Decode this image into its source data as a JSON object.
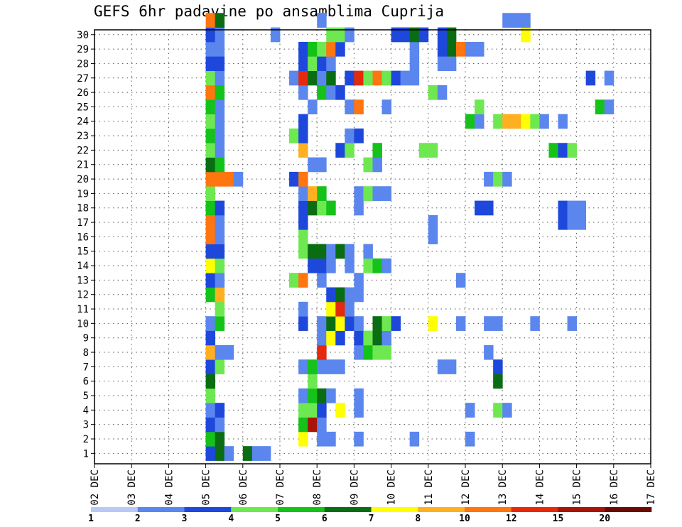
{
  "chart_data": {
    "type": "heatmap",
    "title": "GEFS 6hr padavine po ansamblima Cuprija",
    "xlabel": "",
    "ylabel": "",
    "x_ticks": [
      "02 DEC",
      "03 DEC",
      "04 DEC",
      "05 DEC",
      "06 DEC",
      "07 DEC",
      "08 DEC",
      "09 DEC",
      "10 DEC",
      "11 DEC",
      "12 DEC",
      "13 DEC",
      "14 DEC",
      "15 DEC",
      "16 DEC",
      "17 DEC"
    ],
    "y_ticks": [
      "1",
      "2",
      "3",
      "4",
      "5",
      "6",
      "7",
      "8",
      "9",
      "10",
      "11",
      "12",
      "13",
      "14",
      "15",
      "16",
      "17",
      "18",
      "19",
      "20",
      "21",
      "22",
      "23",
      "24",
      "25",
      "26",
      "27",
      "28",
      "29",
      "30"
    ],
    "x_unit": "6-hour step (index 0 = 02 DEC 00Z)",
    "grid": true,
    "legend_placement": "bottom",
    "legend": {
      "levels": [
        "1",
        "2",
        "3",
        "4",
        "5",
        "6",
        "7",
        "8",
        "10",
        "12",
        "15",
        "20"
      ],
      "colors": [
        "#b9c8f6",
        "#5b86ee",
        "#1e48dc",
        "#6ee850",
        "#15c21a",
        "#0a6d14",
        "#ffff00",
        "#ffb020",
        "#ff7510",
        "#e42a0a",
        "#a81408",
        "#6a0a04"
      ]
    },
    "cells": [
      [
        0,
        12,
        2
      ],
      [
        0,
        13,
        5
      ],
      [
        0,
        14,
        1
      ],
      [
        0,
        16,
        5
      ],
      [
        0,
        17,
        1
      ],
      [
        0,
        18,
        1
      ],
      [
        1,
        12,
        4
      ],
      [
        1,
        13,
        5
      ],
      [
        1,
        22,
        6
      ],
      [
        1,
        24,
        1
      ],
      [
        1,
        25,
        1
      ],
      [
        1,
        28,
        1
      ],
      [
        1,
        34,
        1
      ],
      [
        1,
        40,
        1
      ],
      [
        2,
        12,
        2
      ],
      [
        2,
        13,
        1
      ],
      [
        2,
        22,
        4
      ],
      [
        2,
        23,
        10
      ],
      [
        2,
        24,
        1
      ],
      [
        3,
        12,
        1
      ],
      [
        3,
        13,
        2
      ],
      [
        3,
        22,
        3
      ],
      [
        3,
        23,
        3
      ],
      [
        3,
        24,
        2
      ],
      [
        3,
        26,
        6
      ],
      [
        3,
        28,
        1
      ],
      [
        3,
        40,
        1
      ],
      [
        3,
        43,
        3
      ],
      [
        3,
        44,
        1
      ],
      [
        4,
        12,
        3
      ],
      [
        4,
        22,
        1
      ],
      [
        4,
        23,
        4
      ],
      [
        4,
        24,
        5
      ],
      [
        4,
        25,
        1
      ],
      [
        4,
        28,
        1
      ],
      [
        5,
        12,
        5
      ],
      [
        5,
        23,
        3
      ],
      [
        5,
        43,
        5
      ],
      [
        6,
        12,
        2
      ],
      [
        6,
        13,
        3
      ],
      [
        6,
        22,
        1
      ],
      [
        6,
        23,
        4
      ],
      [
        6,
        24,
        1
      ],
      [
        6,
        25,
        1
      ],
      [
        6,
        26,
        1
      ],
      [
        6,
        37,
        1
      ],
      [
        6,
        38,
        1
      ],
      [
        6,
        43,
        2
      ],
      [
        7,
        12,
        7
      ],
      [
        7,
        13,
        1
      ],
      [
        7,
        14,
        1
      ],
      [
        7,
        24,
        9
      ],
      [
        7,
        28,
        1
      ],
      [
        7,
        29,
        4
      ],
      [
        7,
        30,
        3
      ],
      [
        7,
        31,
        3
      ],
      [
        7,
        42,
        1
      ],
      [
        8,
        12,
        2
      ],
      [
        8,
        24,
        1
      ],
      [
        8,
        25,
        6
      ],
      [
        8,
        26,
        2
      ],
      [
        8,
        28,
        2
      ],
      [
        8,
        29,
        3
      ],
      [
        8,
        30,
        5
      ],
      [
        8,
        31,
        1
      ],
      [
        9,
        12,
        1
      ],
      [
        9,
        13,
        4
      ],
      [
        9,
        22,
        2
      ],
      [
        9,
        24,
        1
      ],
      [
        9,
        25,
        5
      ],
      [
        9,
        26,
        6
      ],
      [
        9,
        27,
        2
      ],
      [
        9,
        28,
        1
      ],
      [
        9,
        30,
        5
      ],
      [
        9,
        31,
        3
      ],
      [
        9,
        32,
        2
      ],
      [
        9,
        36,
        6
      ],
      [
        9,
        39,
        1
      ],
      [
        9,
        42,
        1
      ],
      [
        9,
        43,
        1
      ],
      [
        9,
        47,
        1
      ],
      [
        9,
        51,
        1
      ],
      [
        10,
        13,
        3
      ],
      [
        10,
        22,
        1
      ],
      [
        10,
        25,
        6
      ],
      [
        10,
        26,
        9
      ],
      [
        10,
        27,
        1
      ],
      [
        11,
        12,
        4
      ],
      [
        11,
        13,
        7
      ],
      [
        11,
        25,
        2
      ],
      [
        11,
        26,
        5
      ],
      [
        11,
        27,
        1
      ],
      [
        11,
        28,
        1
      ],
      [
        12,
        12,
        2
      ],
      [
        12,
        13,
        1
      ],
      [
        12,
        21,
        3
      ],
      [
        12,
        22,
        8
      ],
      [
        12,
        24,
        1
      ],
      [
        12,
        28,
        1
      ],
      [
        12,
        39,
        1
      ],
      [
        13,
        12,
        6
      ],
      [
        13,
        13,
        3
      ],
      [
        13,
        23,
        2
      ],
      [
        13,
        24,
        2
      ],
      [
        13,
        25,
        1
      ],
      [
        13,
        27,
        1
      ],
      [
        13,
        29,
        3
      ],
      [
        13,
        30,
        4
      ],
      [
        13,
        31,
        1
      ],
      [
        14,
        12,
        2
      ],
      [
        14,
        13,
        2
      ],
      [
        14,
        22,
        3
      ],
      [
        14,
        23,
        5
      ],
      [
        14,
        24,
        5
      ],
      [
        14,
        25,
        1
      ],
      [
        14,
        26,
        5
      ],
      [
        14,
        27,
        1
      ],
      [
        14,
        29,
        1
      ],
      [
        15,
        12,
        8
      ],
      [
        15,
        13,
        1
      ],
      [
        15,
        22,
        3
      ],
      [
        15,
        36,
        1
      ],
      [
        16,
        12,
        8
      ],
      [
        16,
        13,
        1
      ],
      [
        16,
        22,
        2
      ],
      [
        16,
        36,
        1
      ],
      [
        16,
        50,
        2
      ],
      [
        16,
        51,
        1
      ],
      [
        16,
        52,
        1
      ],
      [
        17,
        12,
        4
      ],
      [
        17,
        13,
        2
      ],
      [
        17,
        22,
        2
      ],
      [
        17,
        23,
        5
      ],
      [
        17,
        24,
        3
      ],
      [
        17,
        25,
        4
      ],
      [
        17,
        28,
        1
      ],
      [
        17,
        41,
        2
      ],
      [
        17,
        42,
        2
      ],
      [
        17,
        50,
        2
      ],
      [
        17,
        51,
        1
      ],
      [
        17,
        52,
        1
      ],
      [
        18,
        12,
        3
      ],
      [
        18,
        22,
        1
      ],
      [
        18,
        23,
        7
      ],
      [
        18,
        24,
        4
      ],
      [
        18,
        28,
        1
      ],
      [
        18,
        29,
        3
      ],
      [
        18,
        30,
        1
      ],
      [
        18,
        31,
        1
      ],
      [
        19,
        12,
        8
      ],
      [
        19,
        13,
        8
      ],
      [
        19,
        14,
        8
      ],
      [
        19,
        15,
        1
      ],
      [
        19,
        21,
        2
      ],
      [
        19,
        22,
        8
      ],
      [
        19,
        42,
        1
      ],
      [
        19,
        43,
        3
      ],
      [
        19,
        44,
        1
      ],
      [
        20,
        12,
        5
      ],
      [
        20,
        13,
        4
      ],
      [
        20,
        23,
        1
      ],
      [
        20,
        24,
        1
      ],
      [
        20,
        29,
        3
      ],
      [
        20,
        30,
        1
      ],
      [
        21,
        12,
        3
      ],
      [
        21,
        13,
        1
      ],
      [
        21,
        22,
        7
      ],
      [
        21,
        26,
        2
      ],
      [
        21,
        27,
        3
      ],
      [
        21,
        30,
        4
      ],
      [
        21,
        35,
        3
      ],
      [
        21,
        36,
        3
      ],
      [
        21,
        49,
        4
      ],
      [
        21,
        50,
        2
      ],
      [
        21,
        51,
        3
      ],
      [
        22,
        12,
        4
      ],
      [
        22,
        13,
        1
      ],
      [
        22,
        21,
        3
      ],
      [
        22,
        22,
        2
      ],
      [
        22,
        27,
        1
      ],
      [
        22,
        28,
        2
      ],
      [
        23,
        12,
        3
      ],
      [
        23,
        13,
        1
      ],
      [
        23,
        22,
        2
      ],
      [
        23,
        40,
        4
      ],
      [
        23,
        41,
        1
      ],
      [
        23,
        43,
        3
      ],
      [
        23,
        44,
        7
      ],
      [
        23,
        45,
        7
      ],
      [
        23,
        46,
        6
      ],
      [
        23,
        47,
        3
      ],
      [
        23,
        48,
        1
      ],
      [
        23,
        50,
        1
      ],
      [
        24,
        12,
        4
      ],
      [
        24,
        13,
        1
      ],
      [
        24,
        23,
        1
      ],
      [
        24,
        27,
        1
      ],
      [
        24,
        28,
        8
      ],
      [
        24,
        31,
        1
      ],
      [
        24,
        41,
        3
      ],
      [
        24,
        54,
        4
      ],
      [
        24,
        55,
        1
      ],
      [
        25,
        12,
        8
      ],
      [
        25,
        13,
        4
      ],
      [
        25,
        22,
        1
      ],
      [
        25,
        24,
        4
      ],
      [
        25,
        25,
        1
      ],
      [
        25,
        26,
        2
      ],
      [
        25,
        36,
        3
      ],
      [
        25,
        37,
        1
      ],
      [
        26,
        12,
        3
      ],
      [
        26,
        13,
        1
      ],
      [
        26,
        21,
        1
      ],
      [
        26,
        22,
        9
      ],
      [
        26,
        23,
        5
      ],
      [
        26,
        24,
        1
      ],
      [
        26,
        25,
        5
      ],
      [
        26,
        27,
        2
      ],
      [
        26,
        28,
        9
      ],
      [
        26,
        29,
        3
      ],
      [
        26,
        30,
        8
      ],
      [
        26,
        31,
        3
      ],
      [
        26,
        32,
        2
      ],
      [
        26,
        33,
        1
      ],
      [
        26,
        34,
        1
      ],
      [
        26,
        53,
        2
      ],
      [
        26,
        55,
        1
      ],
      [
        27,
        12,
        2
      ],
      [
        27,
        13,
        2
      ],
      [
        27,
        22,
        2
      ],
      [
        27,
        23,
        3
      ],
      [
        27,
        24,
        2
      ],
      [
        27,
        25,
        1
      ],
      [
        27,
        34,
        1
      ],
      [
        27,
        37,
        1
      ],
      [
        27,
        38,
        1
      ],
      [
        28,
        12,
        1
      ],
      [
        28,
        13,
        1
      ],
      [
        28,
        22,
        2
      ],
      [
        28,
        23,
        4
      ],
      [
        28,
        24,
        3
      ],
      [
        28,
        25,
        8
      ],
      [
        28,
        26,
        2
      ],
      [
        28,
        34,
        1
      ],
      [
        28,
        37,
        2
      ],
      [
        28,
        38,
        5
      ],
      [
        28,
        39,
        8
      ],
      [
        28,
        40,
        1
      ],
      [
        28,
        41,
        1
      ],
      [
        29,
        12,
        2
      ],
      [
        29,
        13,
        1
      ],
      [
        29,
        19,
        1
      ],
      [
        29,
        25,
        3
      ],
      [
        29,
        26,
        3
      ],
      [
        29,
        27,
        1
      ],
      [
        29,
        32,
        2
      ],
      [
        29,
        33,
        2
      ],
      [
        29,
        34,
        5
      ],
      [
        29,
        35,
        2
      ],
      [
        29,
        37,
        2
      ],
      [
        29,
        38,
        5
      ],
      [
        29,
        46,
        6
      ],
      [
        30,
        12,
        8
      ],
      [
        30,
        13,
        5
      ],
      [
        30,
        24,
        1
      ],
      [
        30,
        44,
        1
      ],
      [
        30,
        45,
        1
      ],
      [
        30,
        46,
        1
      ]
    ]
  }
}
